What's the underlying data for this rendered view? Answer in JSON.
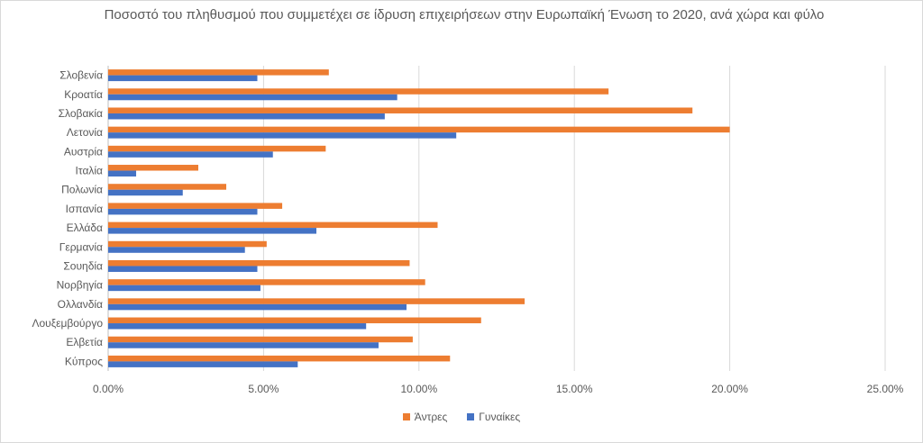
{
  "chart_data": {
    "type": "bar",
    "orientation": "horizontal",
    "title": "Ποσοστό του πληθυσμού που συμμετέχει σε ίδρυση επιχειρήσεων στην Ευρωπαϊκή Ένωση το 2020, ανά χώρα και φύλο",
    "categories": [
      "Σλοβενία",
      "Κροατία",
      "Σλοβακία",
      "Λετονία",
      "Αυστρία",
      "Ιταλία",
      "Πολωνία",
      "Ισπανία",
      "Ελλάδα",
      "Γερμανία",
      "Σουηδία",
      "Νορβηγία",
      "Ολλανδία",
      "Λουξεμβούργο",
      "Ελβετία",
      "Κύπρος"
    ],
    "series": [
      {
        "name": "Άντρες",
        "color": "#ed7d31",
        "values": [
          7.1,
          16.1,
          18.8,
          20.0,
          7.0,
          2.9,
          3.8,
          5.6,
          10.6,
          5.1,
          9.7,
          10.2,
          13.4,
          12.0,
          9.8,
          11.0
        ]
      },
      {
        "name": "Γυναίκες",
        "color": "#4472c4",
        "values": [
          4.8,
          9.3,
          8.9,
          11.2,
          5.3,
          0.9,
          2.4,
          4.8,
          6.7,
          4.4,
          4.8,
          4.9,
          9.6,
          8.3,
          8.7,
          6.1
        ]
      }
    ],
    "xlim": [
      0,
      25
    ],
    "xticks": [
      "0.00%",
      "5.00%",
      "10.00%",
      "15.00%",
      "20.00%",
      "25.00%"
    ],
    "grid": true,
    "legend_position": "bottom"
  }
}
